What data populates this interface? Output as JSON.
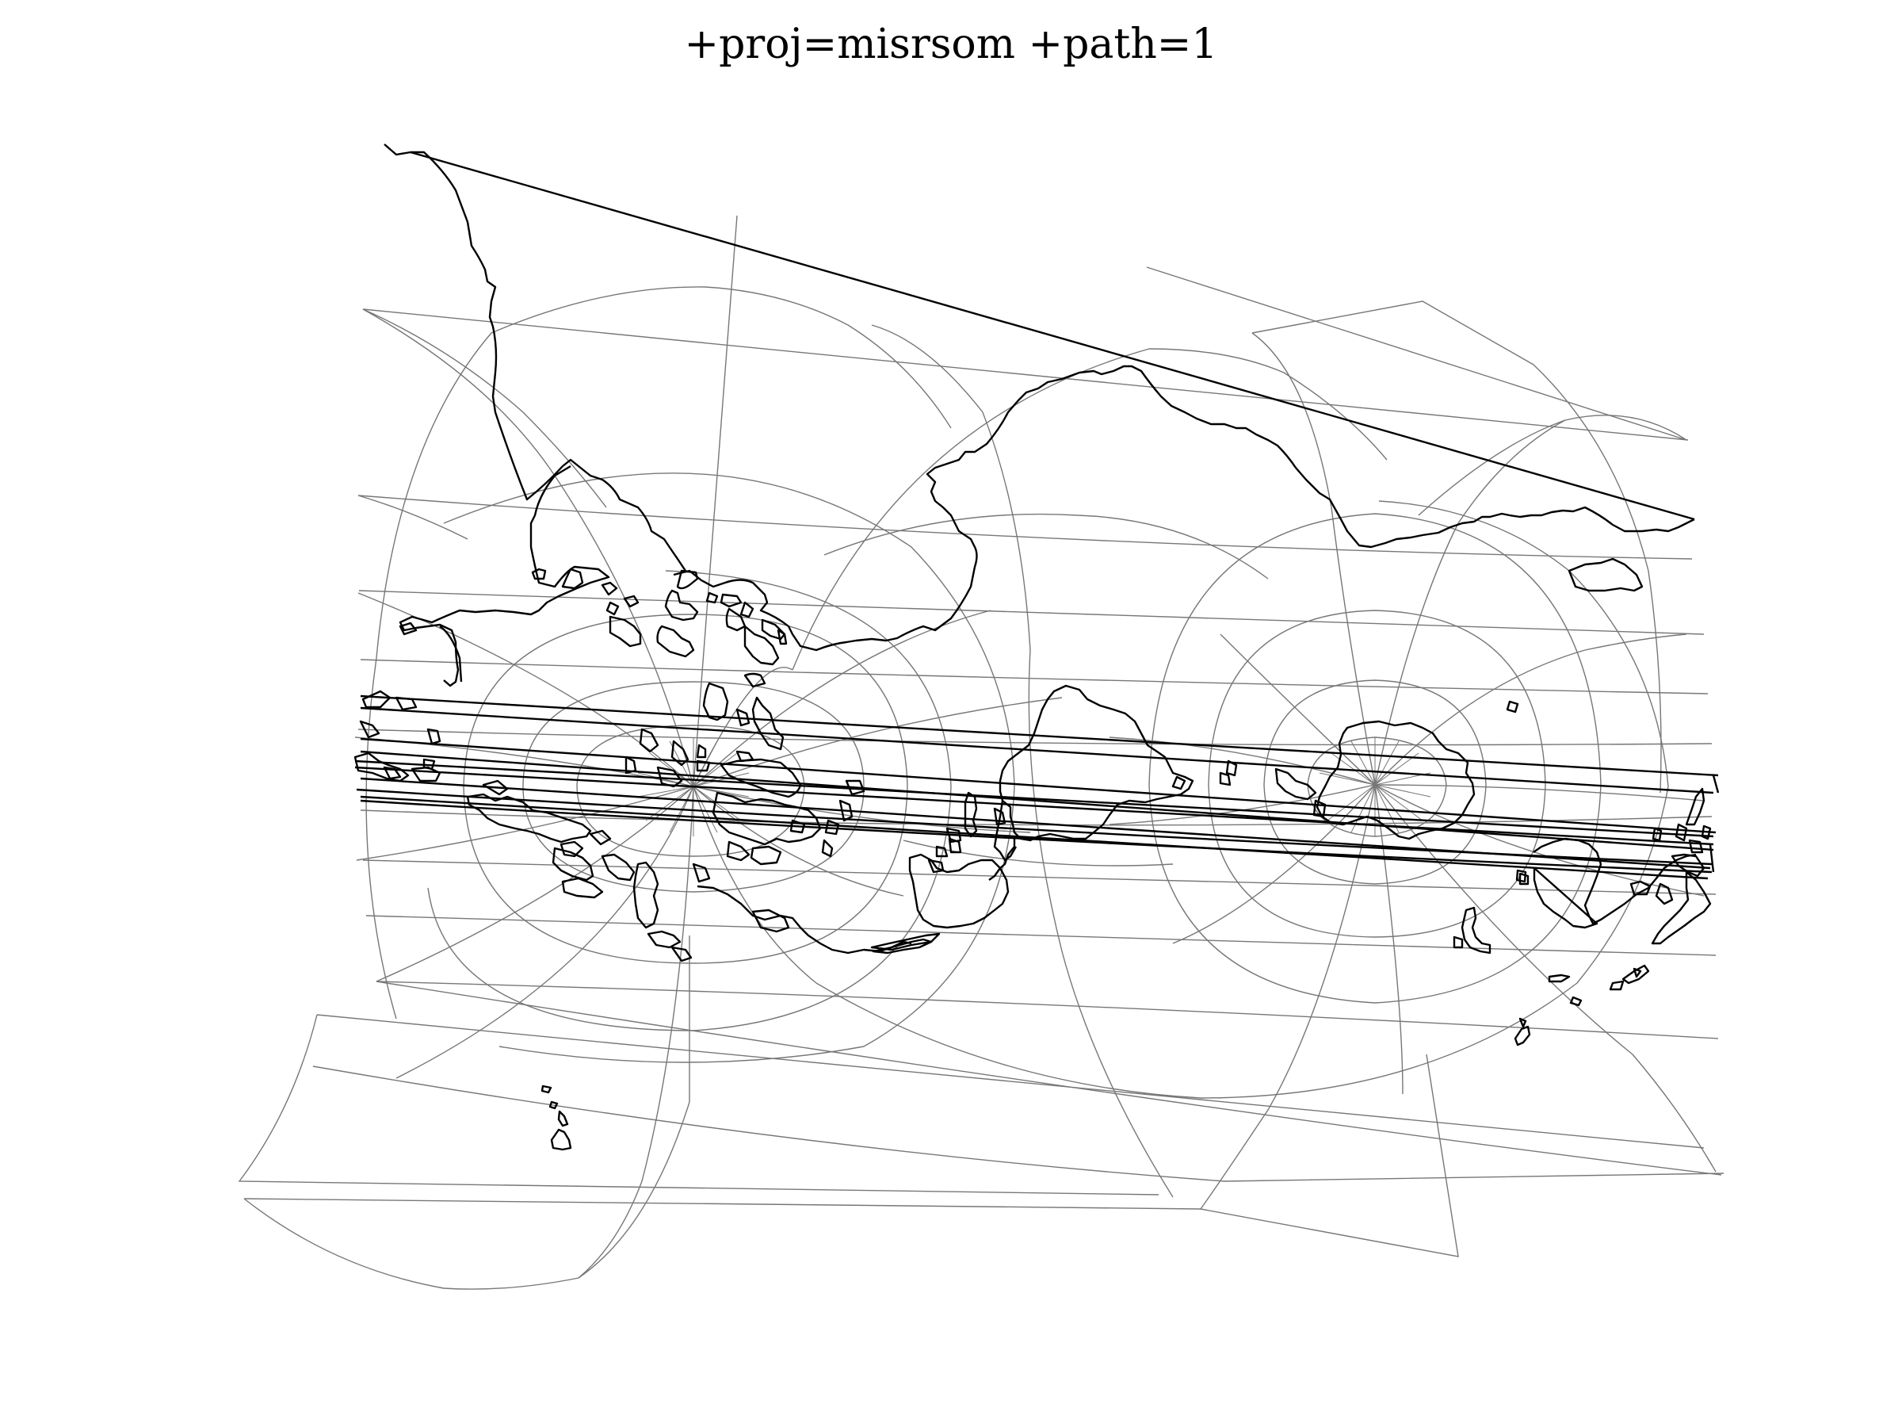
{
  "title": "+proj=misrsom +path=1",
  "colors": {
    "background": "#ffffff",
    "graticule": "#777777",
    "coastline": "#000000",
    "text": "#000000"
  }
}
